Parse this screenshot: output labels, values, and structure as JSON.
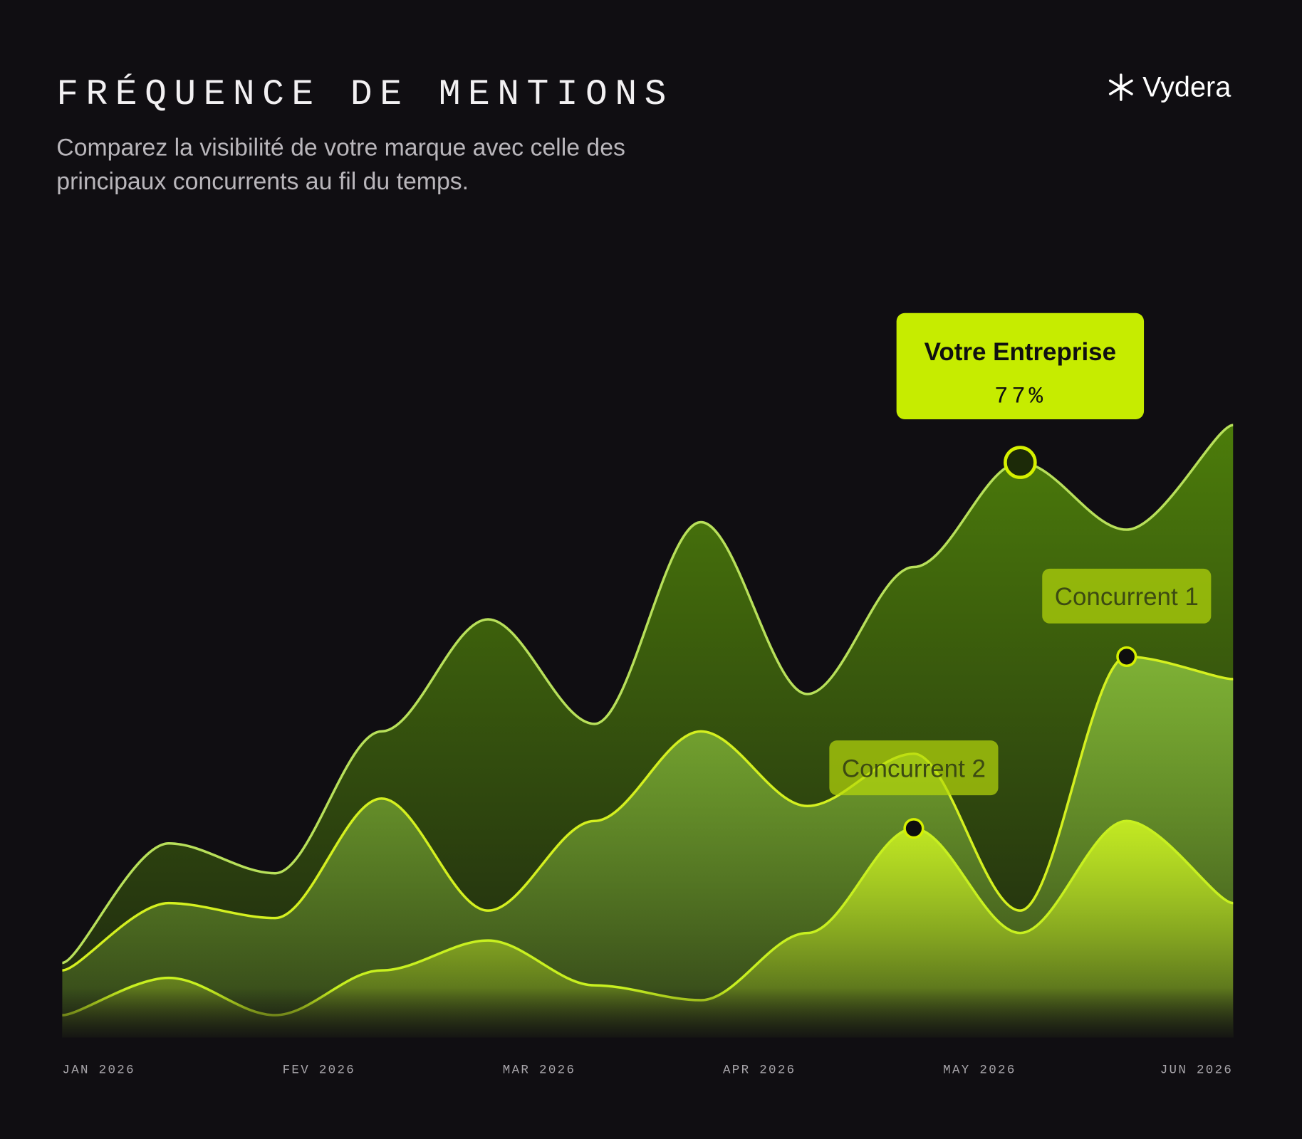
{
  "chart_data": {
    "type": "area",
    "title": "FRÉQUENCE DE MENTIONS",
    "subtitle": "Comparez la visibilité de votre marque avec celle des principaux concurrents au fil du temps.",
    "brand": "Vydera",
    "x_labels": [
      "JAN 2026",
      "FEV 2026",
      "MAR 2026",
      "APR 2026",
      "MAY 2026",
      "JUN 2026"
    ],
    "ylim": [
      0,
      100
    ],
    "series": [
      {
        "name": "Votre Entreprise",
        "color": "#b8e05a",
        "fill": "#4f820a",
        "values": [
          10,
          26,
          22,
          41,
          56,
          42,
          69,
          46,
          63,
          77,
          68,
          82
        ],
        "value_labels": [
          null,
          null,
          null,
          null,
          null,
          null,
          null,
          null,
          null,
          "77%",
          null,
          null
        ],
        "highlight_index": 9
      },
      {
        "name": "Concurrent 1",
        "color": "#d4f020",
        "fill": "#8fc63f",
        "values": [
          9,
          18,
          16,
          32,
          17,
          29,
          41,
          31,
          38,
          17,
          51,
          48
        ],
        "highlight_index": 10
      },
      {
        "name": "Concurrent 2",
        "color": "#c8f020",
        "fill": "#c8ee22",
        "values": [
          3,
          8,
          3,
          9,
          13,
          7,
          5,
          14,
          28,
          14,
          29,
          18
        ],
        "highlight_index": 8
      }
    ]
  }
}
